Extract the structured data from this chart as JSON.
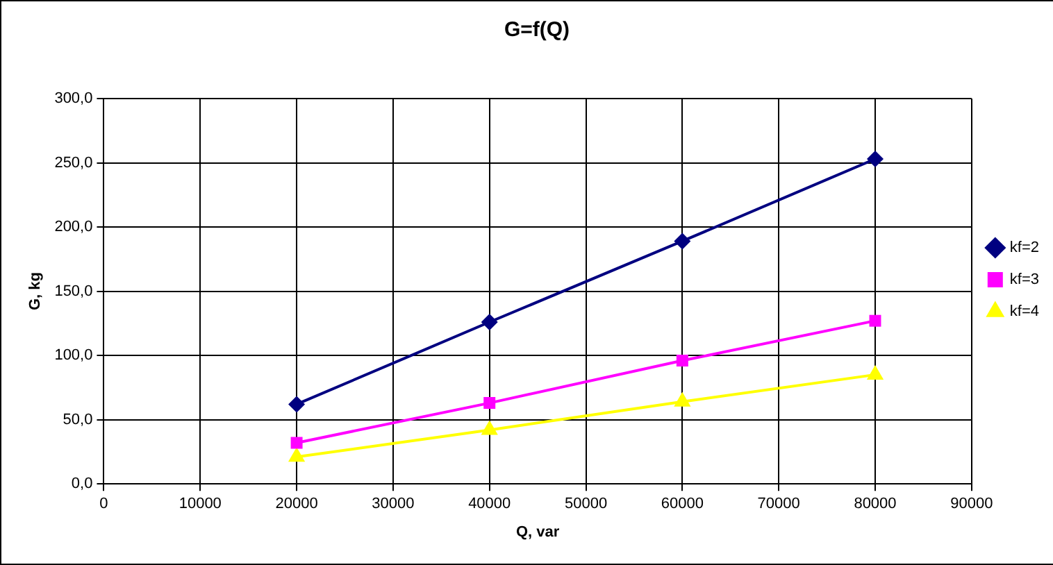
{
  "chart_data": {
    "type": "line",
    "title": "G=f(Q)",
    "xlabel": "Q, var",
    "ylabel": "G, kg",
    "x": [
      20000,
      40000,
      60000,
      80000
    ],
    "series": [
      {
        "name": "kf=2",
        "color": "#000080",
        "marker": "diamond",
        "values": [
          62,
          126,
          189,
          253
        ]
      },
      {
        "name": "kf=3",
        "color": "#ff00ff",
        "marker": "square",
        "values": [
          32,
          63,
          96,
          127
        ]
      },
      {
        "name": "kf=4",
        "color": "#ffff00",
        "marker": "triangle",
        "values": [
          21,
          42,
          64,
          85
        ]
      }
    ],
    "xlim": [
      0,
      90000
    ],
    "xticks": [
      0,
      10000,
      20000,
      30000,
      40000,
      50000,
      60000,
      70000,
      80000,
      90000
    ],
    "ylim": [
      0,
      300
    ],
    "yticks": [
      {
        "value": 0,
        "label": "0,0"
      },
      {
        "value": 50,
        "label": "50,0"
      },
      {
        "value": 100,
        "label": "100,0"
      },
      {
        "value": 150,
        "label": "150,0"
      },
      {
        "value": 200,
        "label": "200,0"
      },
      {
        "value": 250,
        "label": "250,0"
      },
      {
        "value": 300,
        "label": "300,0"
      }
    ],
    "grid": true,
    "legend": "right",
    "line_style": "solid"
  }
}
